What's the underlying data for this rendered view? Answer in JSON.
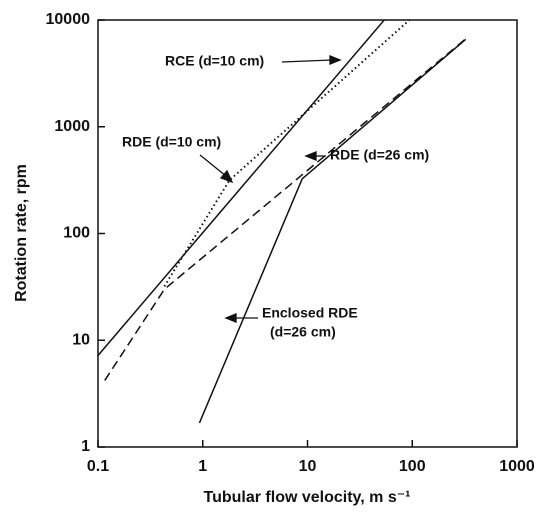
{
  "chart_data": {
    "type": "line",
    "xscale": "log",
    "yscale": "log",
    "xlabel": "Tubular flow velocity, m s⁻¹",
    "ylabel": "Rotation rate, rpm",
    "xlim": [
      0.1,
      1000
    ],
    "ylim": [
      1,
      10000
    ],
    "xticks": [
      0.1,
      1,
      10,
      100,
      1000
    ],
    "yticks": [
      1,
      10,
      100,
      1000,
      10000
    ],
    "series": [
      {
        "style": "solid",
        "color": "#111111",
        "x": [
          0.1,
          54
        ],
        "y": [
          7.2,
          10000
        ]
      },
      {
        "style": "dotted",
        "color": "#111111",
        "x": [
          0.43,
          1.8,
          94
        ],
        "y": [
          32,
          316,
          10000
        ]
      },
      {
        "style": "dashed",
        "color": "#111111",
        "x": [
          0.116,
          0.43,
          320
        ],
        "y": [
          4.2,
          30,
          6600
        ]
      },
      {
        "style": "solid",
        "color": "#111111",
        "x": [
          0.93,
          8.9,
          324
        ],
        "y": [
          1.68,
          325,
          6600
        ]
      }
    ],
    "annotations": [
      "RCE (d=10 cm)",
      "RDE (d=10 cm)",
      "RDE (d=26 cm)",
      "Enclosed RDE",
      "(d=26 cm)"
    ]
  }
}
